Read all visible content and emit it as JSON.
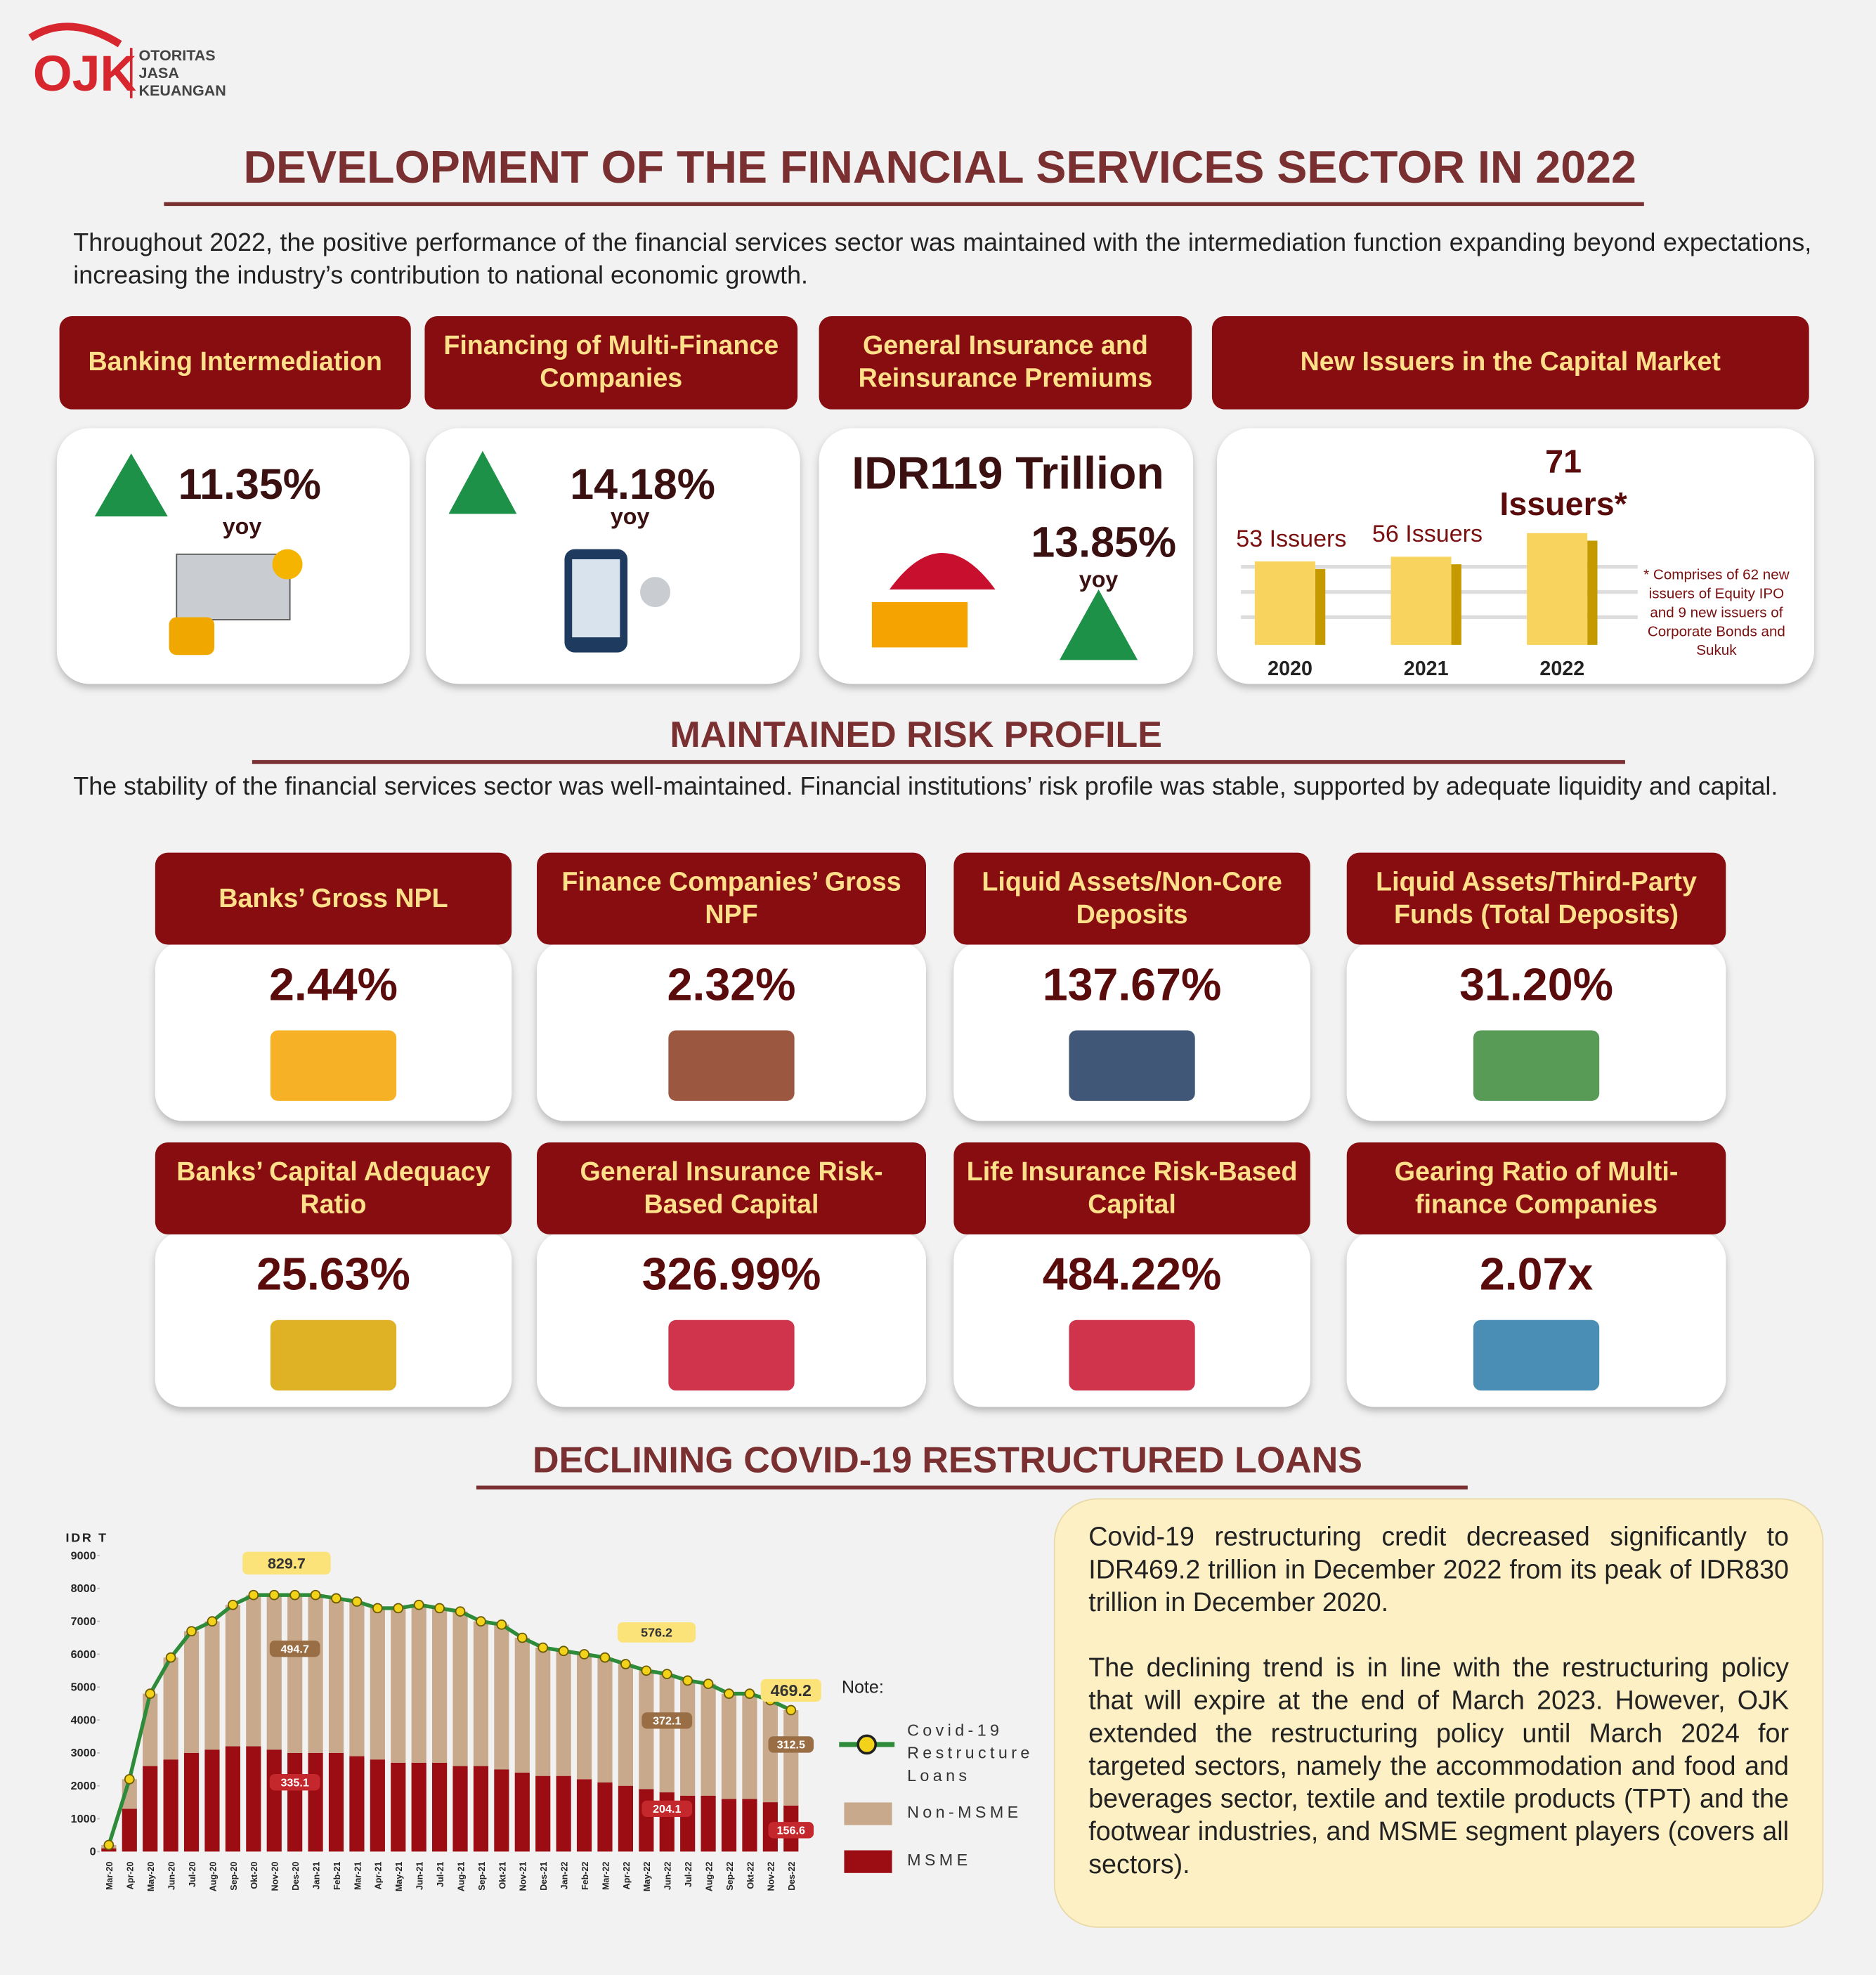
{
  "header": {
    "logo_mark": "OJK",
    "logo": [
      "OTORITAS",
      "JASA",
      "KEUANGAN"
    ],
    "title": "DEVELOPMENT OF THE FINANCIAL SERVICES SECTOR IN 2022",
    "intro": "Throughout 2022, the positive performance of the financial services sector was maintained with the intermediation function expanding beyond expectations, increasing the industry’s contribution to national economic growth."
  },
  "highlights": [
    {
      "title": "Banking Intermediation",
      "value": "11.35%",
      "note": "yoy"
    },
    {
      "title": "Financing of Multi-Finance Companies",
      "value": "14.18%",
      "note": "yoy"
    },
    {
      "title": "General Insurance and Reinsurance Premiums",
      "amount": "IDR119 Trillion",
      "value": "13.85%",
      "note": "yoy"
    }
  ],
  "chart_data": [
    {
      "type": "bar",
      "title": "New Issuers in the Capital Market",
      "categories": [
        "2020",
        "2021",
        "2022"
      ],
      "values": [
        53,
        56,
        71
      ],
      "value_labels": [
        "53 Issuers",
        "56 Issuers",
        "71 Issuers*"
      ],
      "color": "#f8d35e",
      "note": "* Comprises of 62 new issuers of Equity IPO and 9 new issuers of Corporate Bonds and Sukuk"
    },
    {
      "type": "combo",
      "ylabel": "IDR T",
      "legend_title": "Note:",
      "ylim": [
        0,
        9000
      ],
      "yticks": [
        0,
        1000,
        2000,
        3000,
        4000,
        5000,
        6000,
        7000,
        8000,
        9000
      ],
      "categories": [
        "Mar-20",
        "Apr-20",
        "May-20",
        "Jun-20",
        "Jul-20",
        "Aug-20",
        "Sep-20",
        "Okt-20",
        "Nov-20",
        "Des-20",
        "Jan-21",
        "Feb-21",
        "Mar-21",
        "Apr-21",
        "May-21",
        "Jun-21",
        "Jul-21",
        "Aug-21",
        "Sep-21",
        "Okt-21",
        "Nov-21",
        "Des-21",
        "Jan-22",
        "Feb-22",
        "Mar-22",
        "Apr-22",
        "May-22",
        "Jun-22",
        "Jul-22",
        "Aug-22",
        "Sep-22",
        "Okt-22",
        "Nov-22",
        "Des-22"
      ],
      "series": [
        {
          "name": "Covid-19 Restructure Loans",
          "mark": "line",
          "color": "#2e8b3a",
          "values": [
            200,
            2200,
            4800,
            5900,
            6700,
            7000,
            7500,
            7800,
            7800,
            7800,
            7800,
            7700,
            7600,
            7400,
            7400,
            7500,
            7400,
            7300,
            7000,
            6900,
            6500,
            6200,
            6100,
            6000,
            5900,
            5700,
            5500,
            5400,
            5200,
            5100,
            4800,
            4800,
            4600,
            4300
          ]
        },
        {
          "name": "Non-MSME",
          "mark": "bar",
          "color": "#c9a98c",
          "values": [
            100,
            900,
            2200,
            3100,
            3700,
            3900,
            4300,
            4600,
            4700,
            4800,
            4800,
            4700,
            4700,
            4600,
            4700,
            4800,
            4700,
            4700,
            4400,
            4400,
            4100,
            3900,
            3800,
            3800,
            3800,
            3700,
            3600,
            3600,
            3500,
            3400,
            3200,
            3200,
            3100,
            2900
          ]
        },
        {
          "name": "MSME",
          "mark": "bar",
          "color": "#9b0d12",
          "values": [
            100,
            1300,
            2600,
            2800,
            3000,
            3100,
            3200,
            3200,
            3100,
            3000,
            3000,
            3000,
            2900,
            2800,
            2700,
            2700,
            2700,
            2600,
            2600,
            2500,
            2400,
            2300,
            2300,
            2200,
            2100,
            2000,
            1900,
            1800,
            1700,
            1700,
            1600,
            1600,
            1500,
            1400
          ]
        }
      ],
      "annotations": [
        "829.7",
        "494.7",
        "335.1",
        "576.2",
        "372.1",
        "204.1",
        "469.2",
        "312.5",
        "156.6"
      ]
    }
  ],
  "risk": {
    "title": "MAINTAINED RISK PROFILE",
    "intro": "The stability of the financial services sector was well-maintained. Financial institutions’ risk profile was stable, supported by adequate liquidity and capital.",
    "cards": [
      {
        "title": "Banks’ Gross NPL",
        "value": "2.44%"
      },
      {
        "title": "Finance Companies’ Gross NPF",
        "value": "2.32%"
      },
      {
        "title": "Liquid Assets/Non-Core Deposits",
        "value": "137.67%"
      },
      {
        "title": "Liquid Assets/Third-Party Funds (Total Deposits)",
        "value": "31.20%"
      },
      {
        "title": "Banks’ Capital Adequacy Ratio",
        "value": "25.63%"
      },
      {
        "title": "General Insurance Risk-Based Capital",
        "value": "326.99%"
      },
      {
        "title": "Life Insurance Risk-Based Capital",
        "value": "484.22%"
      },
      {
        "title": "Gearing Ratio of Multi-finance Companies",
        "value": "2.07x"
      }
    ]
  },
  "covid": {
    "title": "DECLINING COVID-19 RESTRUCTURED LOANS",
    "paragraphs": [
      "Covid-19 restructuring credit decreased significantly to IDR469.2 trillion in December 2022 from its peak of IDR830 trillion in December 2020.",
      "The declining trend is in line with the restructuring policy that will expire at the end of March 2023. However, OJK extended the restructuring policy until March 2024 for targeted sectors, namely the accommodation and food and beverages sector, textile and textile products (TPT) and the footwear industries, and MSME segment players (covers all sectors)."
    ]
  }
}
